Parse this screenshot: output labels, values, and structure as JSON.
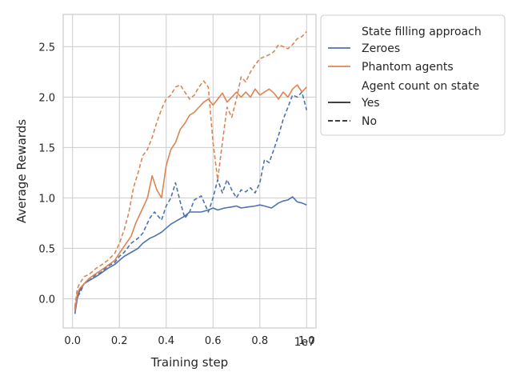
{
  "chart_data": {
    "type": "line",
    "title": "",
    "xlabel": "Training step",
    "ylabel": "Average Rewards",
    "x_offset_label": "1e7",
    "xlim": [
      -0.04,
      1.04
    ],
    "ylim": [
      -0.29,
      2.82
    ],
    "x_ticks": [
      0.0,
      0.2,
      0.4,
      0.6,
      0.8,
      1.0
    ],
    "x_tick_labels": [
      "0.0",
      "0.2",
      "0.4",
      "0.6",
      "0.8",
      "1.0"
    ],
    "y_ticks": [
      0.0,
      0.5,
      1.0,
      1.5,
      2.0,
      2.5
    ],
    "y_tick_labels": [
      "0.0",
      "0.5",
      "1.0",
      "1.5",
      "2.0",
      "2.5"
    ],
    "grid": true,
    "legend": {
      "placement": "outside-right",
      "hue_title": "State filling approach",
      "hue_entries": [
        {
          "label": "Zeroes",
          "color": "#4c72b0"
        },
        {
          "label": "Phantom agents",
          "color": "#dd8452"
        }
      ],
      "style_title": "Agent count on state",
      "style_entries": [
        {
          "label": "Yes",
          "dash": "solid"
        },
        {
          "label": "No",
          "dash": "dashed"
        }
      ]
    },
    "series": [
      {
        "hue": "Zeroes",
        "style": "Yes",
        "points": [
          [
            0.01,
            -0.15
          ],
          [
            0.02,
            0.0
          ],
          [
            0.03,
            0.08
          ],
          [
            0.05,
            0.15
          ],
          [
            0.07,
            0.18
          ],
          [
            0.1,
            0.22
          ],
          [
            0.12,
            0.25
          ],
          [
            0.15,
            0.3
          ],
          [
            0.18,
            0.34
          ],
          [
            0.2,
            0.38
          ],
          [
            0.22,
            0.42
          ],
          [
            0.25,
            0.46
          ],
          [
            0.28,
            0.5
          ],
          [
            0.3,
            0.55
          ],
          [
            0.33,
            0.6
          ],
          [
            0.35,
            0.62
          ],
          [
            0.38,
            0.66
          ],
          [
            0.4,
            0.7
          ],
          [
            0.42,
            0.74
          ],
          [
            0.45,
            0.78
          ],
          [
            0.48,
            0.82
          ],
          [
            0.5,
            0.86
          ],
          [
            0.52,
            0.86
          ],
          [
            0.55,
            0.86
          ],
          [
            0.58,
            0.88
          ],
          [
            0.6,
            0.9
          ],
          [
            0.62,
            0.88
          ],
          [
            0.65,
            0.9
          ],
          [
            0.68,
            0.91
          ],
          [
            0.7,
            0.92
          ],
          [
            0.72,
            0.9
          ],
          [
            0.75,
            0.91
          ],
          [
            0.78,
            0.92
          ],
          [
            0.8,
            0.93
          ],
          [
            0.82,
            0.92
          ],
          [
            0.85,
            0.9
          ],
          [
            0.88,
            0.95
          ],
          [
            0.9,
            0.97
          ],
          [
            0.92,
            0.98
          ],
          [
            0.94,
            1.01
          ],
          [
            0.96,
            0.96
          ],
          [
            0.98,
            0.95
          ],
          [
            1.0,
            0.93
          ]
        ]
      },
      {
        "hue": "Zeroes",
        "style": "No",
        "points": [
          [
            0.01,
            -0.1
          ],
          [
            0.02,
            0.02
          ],
          [
            0.03,
            0.05
          ],
          [
            0.05,
            0.15
          ],
          [
            0.07,
            0.18
          ],
          [
            0.1,
            0.24
          ],
          [
            0.12,
            0.26
          ],
          [
            0.15,
            0.32
          ],
          [
            0.18,
            0.36
          ],
          [
            0.2,
            0.42
          ],
          [
            0.22,
            0.46
          ],
          [
            0.25,
            0.55
          ],
          [
            0.28,
            0.6
          ],
          [
            0.3,
            0.65
          ],
          [
            0.33,
            0.8
          ],
          [
            0.35,
            0.86
          ],
          [
            0.38,
            0.78
          ],
          [
            0.4,
            0.92
          ],
          [
            0.42,
            1.0
          ],
          [
            0.44,
            1.15
          ],
          [
            0.46,
            0.96
          ],
          [
            0.48,
            0.8
          ],
          [
            0.5,
            0.86
          ],
          [
            0.52,
            0.98
          ],
          [
            0.55,
            1.02
          ],
          [
            0.58,
            0.86
          ],
          [
            0.6,
            1.0
          ],
          [
            0.62,
            1.18
          ],
          [
            0.64,
            1.05
          ],
          [
            0.66,
            1.18
          ],
          [
            0.68,
            1.08
          ],
          [
            0.7,
            1.0
          ],
          [
            0.72,
            1.08
          ],
          [
            0.74,
            1.06
          ],
          [
            0.76,
            1.1
          ],
          [
            0.78,
            1.05
          ],
          [
            0.8,
            1.15
          ],
          [
            0.82,
            1.38
          ],
          [
            0.84,
            1.35
          ],
          [
            0.86,
            1.48
          ],
          [
            0.88,
            1.62
          ],
          [
            0.9,
            1.78
          ],
          [
            0.92,
            1.9
          ],
          [
            0.94,
            2.02
          ],
          [
            0.96,
            2.0
          ],
          [
            0.98,
            2.05
          ],
          [
            1.0,
            1.87
          ]
        ]
      },
      {
        "hue": "Phantom agents",
        "style": "Yes",
        "points": [
          [
            0.01,
            -0.12
          ],
          [
            0.02,
            0.05
          ],
          [
            0.03,
            0.1
          ],
          [
            0.05,
            0.15
          ],
          [
            0.07,
            0.2
          ],
          [
            0.1,
            0.25
          ],
          [
            0.12,
            0.28
          ],
          [
            0.15,
            0.33
          ],
          [
            0.18,
            0.38
          ],
          [
            0.2,
            0.45
          ],
          [
            0.22,
            0.52
          ],
          [
            0.25,
            0.62
          ],
          [
            0.27,
            0.75
          ],
          [
            0.3,
            0.9
          ],
          [
            0.32,
            1.0
          ],
          [
            0.34,
            1.22
          ],
          [
            0.36,
            1.08
          ],
          [
            0.38,
            1.0
          ],
          [
            0.4,
            1.32
          ],
          [
            0.42,
            1.48
          ],
          [
            0.44,
            1.55
          ],
          [
            0.46,
            1.68
          ],
          [
            0.48,
            1.74
          ],
          [
            0.5,
            1.82
          ],
          [
            0.52,
            1.85
          ],
          [
            0.54,
            1.9
          ],
          [
            0.56,
            1.95
          ],
          [
            0.58,
            1.98
          ],
          [
            0.6,
            1.92
          ],
          [
            0.62,
            1.98
          ],
          [
            0.64,
            2.04
          ],
          [
            0.66,
            1.95
          ],
          [
            0.68,
            2.0
          ],
          [
            0.7,
            2.05
          ],
          [
            0.72,
            2.0
          ],
          [
            0.74,
            2.05
          ],
          [
            0.76,
            2.0
          ],
          [
            0.78,
            2.08
          ],
          [
            0.8,
            2.02
          ],
          [
            0.82,
            2.05
          ],
          [
            0.84,
            2.08
          ],
          [
            0.86,
            2.04
          ],
          [
            0.88,
            1.98
          ],
          [
            0.9,
            2.05
          ],
          [
            0.92,
            2.0
          ],
          [
            0.94,
            2.08
          ],
          [
            0.96,
            2.12
          ],
          [
            0.98,
            2.05
          ],
          [
            1.0,
            2.1
          ]
        ]
      },
      {
        "hue": "Phantom agents",
        "style": "No",
        "points": [
          [
            0.01,
            -0.08
          ],
          [
            0.02,
            0.1
          ],
          [
            0.03,
            0.15
          ],
          [
            0.05,
            0.22
          ],
          [
            0.07,
            0.24
          ],
          [
            0.1,
            0.3
          ],
          [
            0.12,
            0.33
          ],
          [
            0.15,
            0.38
          ],
          [
            0.18,
            0.45
          ],
          [
            0.2,
            0.55
          ],
          [
            0.22,
            0.68
          ],
          [
            0.24,
            0.85
          ],
          [
            0.26,
            1.1
          ],
          [
            0.28,
            1.25
          ],
          [
            0.3,
            1.42
          ],
          [
            0.32,
            1.48
          ],
          [
            0.34,
            1.6
          ],
          [
            0.36,
            1.75
          ],
          [
            0.38,
            1.88
          ],
          [
            0.4,
            1.98
          ],
          [
            0.42,
            2.02
          ],
          [
            0.44,
            2.1
          ],
          [
            0.46,
            2.12
          ],
          [
            0.48,
            2.05
          ],
          [
            0.5,
            1.98
          ],
          [
            0.52,
            2.02
          ],
          [
            0.54,
            2.1
          ],
          [
            0.56,
            2.16
          ],
          [
            0.58,
            2.1
          ],
          [
            0.6,
            1.55
          ],
          [
            0.62,
            1.18
          ],
          [
            0.64,
            1.55
          ],
          [
            0.66,
            1.9
          ],
          [
            0.68,
            1.8
          ],
          [
            0.7,
            1.98
          ],
          [
            0.72,
            2.2
          ],
          [
            0.74,
            2.15
          ],
          [
            0.76,
            2.25
          ],
          [
            0.78,
            2.32
          ],
          [
            0.8,
            2.38
          ],
          [
            0.82,
            2.4
          ],
          [
            0.84,
            2.42
          ],
          [
            0.86,
            2.45
          ],
          [
            0.88,
            2.52
          ],
          [
            0.9,
            2.5
          ],
          [
            0.92,
            2.48
          ],
          [
            0.94,
            2.52
          ],
          [
            0.96,
            2.58
          ],
          [
            0.98,
            2.6
          ],
          [
            1.0,
            2.65
          ]
        ]
      }
    ]
  }
}
